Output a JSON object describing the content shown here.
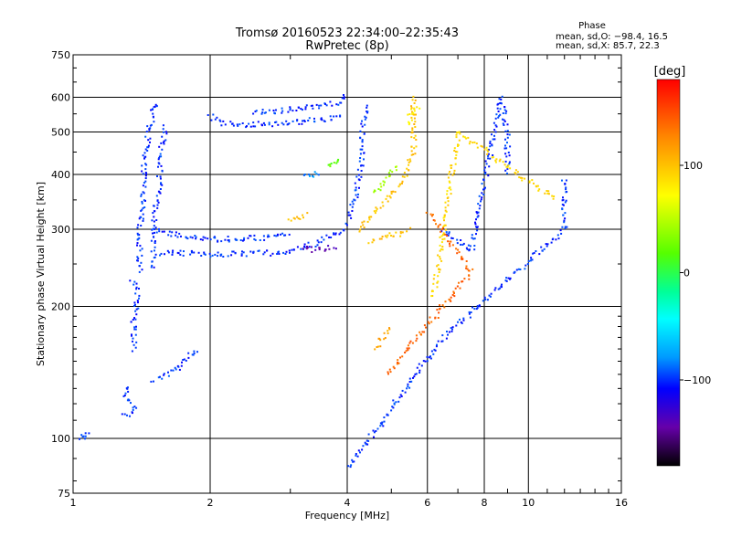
{
  "chart_data": {
    "type": "scatter",
    "title": "Tromsø 20160523 22:34:00–22:35:43",
    "subtitle": "RwPretec (8p)",
    "xlabel": "Frequency [MHz]",
    "ylabel": "Stationary phase Virtual Height [km]",
    "x_scale": "log",
    "y_scale": "log",
    "xlim": [
      1,
      16
    ],
    "ylim": [
      75,
      750
    ],
    "x_ticks": [
      1,
      2,
      4,
      6,
      8,
      10,
      16
    ],
    "x_tick_labels": [
      "1",
      "2",
      "4",
      "6",
      "8",
      "10",
      "16"
    ],
    "y_ticks": [
      75,
      100,
      200,
      300,
      400,
      500,
      600,
      750
    ],
    "y_tick_labels": [
      "75",
      "100",
      "200",
      "300",
      "400",
      "500",
      "600",
      "750"
    ],
    "grid": true,
    "stats": {
      "heading": "Phase",
      "line_o": "mean, sd,O: −98.4, 16.5",
      "line_x": "mean, sd,X:  85.7, 22.3"
    },
    "colorbar": {
      "label": "[deg]",
      "range": [
        -180,
        180
      ],
      "ticks": [
        100,
        0,
        -100
      ],
      "tick_labels": [
        "100",
        "0",
        "−100"
      ]
    },
    "traces": [
      {
        "phase": -100,
        "points": [
          [
            1.3,
            115
          ],
          [
            1.33,
            113
          ],
          [
            1.36,
            118
          ],
          [
            1.3,
            125
          ],
          [
            1.33,
            132
          ]
        ]
      },
      {
        "phase": -100,
        "points": [
          [
            1.36,
            160
          ],
          [
            1.36,
            185
          ],
          [
            1.38,
            200
          ],
          [
            1.38,
            220
          ],
          [
            1.36,
            230
          ],
          [
            1.33,
            230
          ]
        ]
      },
      {
        "phase": -100,
        "points": [
          [
            1.4,
            240
          ],
          [
            1.4,
            270
          ],
          [
            1.4,
            300
          ],
          [
            1.42,
            340
          ],
          [
            1.43,
            380
          ],
          [
            1.43,
            430
          ],
          [
            1.45,
            470
          ],
          [
            1.48,
            520
          ],
          [
            1.5,
            560
          ],
          [
            1.55,
            590
          ]
        ]
      },
      {
        "phase": -100,
        "points": [
          [
            1.5,
            245
          ],
          [
            1.5,
            300
          ],
          [
            1.52,
            340
          ],
          [
            1.55,
            380
          ],
          [
            1.55,
            440
          ],
          [
            1.58,
            480
          ],
          [
            1.6,
            520
          ]
        ]
      },
      {
        "phase": -100,
        "points": [
          [
            1.55,
            265
          ],
          [
            1.7,
            265
          ],
          [
            1.9,
            263
          ],
          [
            2.1,
            263
          ],
          [
            2.4,
            264
          ],
          [
            2.8,
            265
          ],
          [
            3.0,
            268
          ],
          [
            3.2,
            272
          ],
          [
            3.4,
            278
          ],
          [
            3.6,
            285
          ],
          [
            3.8,
            295
          ],
          [
            4.0,
            300
          ]
        ]
      },
      {
        "phase": -100,
        "points": [
          [
            1.5,
            300
          ],
          [
            1.6,
            293
          ],
          [
            1.8,
            288
          ],
          [
            2.0,
            285
          ],
          [
            2.3,
            285
          ],
          [
            2.6,
            287
          ],
          [
            2.8,
            290
          ],
          [
            3.0,
            292
          ]
        ]
      },
      {
        "phase": -100,
        "points": [
          [
            2.0,
            545
          ],
          [
            2.1,
            525
          ],
          [
            2.4,
            520
          ],
          [
            2.7,
            520
          ],
          [
            3.0,
            525
          ],
          [
            3.3,
            530
          ],
          [
            3.6,
            535
          ],
          [
            3.9,
            540
          ]
        ]
      },
      {
        "phase": -100,
        "points": [
          [
            2.5,
            555
          ],
          [
            2.9,
            560
          ],
          [
            3.2,
            565
          ],
          [
            3.6,
            575
          ],
          [
            3.9,
            590
          ],
          [
            4.0,
            610
          ]
        ]
      },
      {
        "phase": -100,
        "points": [
          [
            4.0,
            310
          ],
          [
            4.1,
            340
          ],
          [
            4.2,
            370
          ],
          [
            4.3,
            420
          ],
          [
            4.3,
            480
          ],
          [
            4.35,
            540
          ],
          [
            4.4,
            580
          ]
        ]
      },
      {
        "phase": -100,
        "points": [
          [
            1.05,
            100
          ],
          [
            1.06,
            101
          ],
          [
            1.07,
            102
          ],
          [
            1.04,
            99
          ]
        ]
      },
      {
        "phase": -100,
        "points": [
          [
            1.5,
            135
          ],
          [
            1.6,
            140
          ],
          [
            1.7,
            145
          ],
          [
            1.8,
            155
          ],
          [
            1.9,
            160
          ]
        ]
      },
      {
        "phase": -80,
        "points": [
          [
            3.2,
            395
          ],
          [
            3.3,
            398
          ],
          [
            3.4,
            400
          ],
          [
            3.5,
            404
          ]
        ]
      },
      {
        "phase": 100,
        "points": [
          [
            3.0,
            312
          ],
          [
            3.1,
            318
          ],
          [
            3.2,
            322
          ],
          [
            3.3,
            325
          ]
        ]
      },
      {
        "phase": 20,
        "points": [
          [
            3.6,
            420
          ],
          [
            3.7,
            425
          ],
          [
            3.8,
            430
          ],
          [
            3.9,
            435
          ]
        ]
      },
      {
        "phase": 100,
        "points": [
          [
            4.2,
            300
          ],
          [
            4.4,
            310
          ],
          [
            4.6,
            330
          ],
          [
            4.8,
            345
          ],
          [
            5.0,
            360
          ],
          [
            5.2,
            380
          ],
          [
            5.4,
            400
          ],
          [
            5.5,
            430
          ],
          [
            5.6,
            460
          ],
          [
            5.6,
            510
          ],
          [
            5.6,
            560
          ],
          [
            5.6,
            610
          ]
        ]
      },
      {
        "phase": 100,
        "points": [
          [
            4.5,
            280
          ],
          [
            4.7,
            285
          ],
          [
            5.0,
            290
          ],
          [
            5.3,
            295
          ],
          [
            5.5,
            300
          ]
        ]
      },
      {
        "phase": 40,
        "points": [
          [
            4.6,
            360
          ],
          [
            4.8,
            380
          ],
          [
            5.0,
            400
          ],
          [
            5.2,
            420
          ]
        ]
      },
      {
        "phase": 80,
        "points": [
          [
            5.4,
            520
          ],
          [
            5.5,
            540
          ],
          [
            5.6,
            560
          ],
          [
            5.8,
            580
          ]
        ]
      },
      {
        "phase": -140,
        "points": [
          [
            3.2,
            270
          ],
          [
            3.5,
            270
          ],
          [
            3.8,
            275
          ]
        ]
      },
      {
        "phase": 110,
        "points": [
          [
            4.6,
            160
          ],
          [
            4.8,
            170
          ],
          [
            5.0,
            180
          ]
        ]
      },
      {
        "phase": -100,
        "points": [
          [
            6.5,
            300
          ],
          [
            7.0,
            280
          ],
          [
            7.5,
            270
          ],
          [
            8.7,
            600
          ],
          [
            9.0,
            490
          ],
          [
            9.0,
            400
          ]
        ]
      },
      {
        "phase": 140,
        "points": [
          [
            4.9,
            140
          ],
          [
            7.5,
            240
          ],
          [
            6.0,
            330
          ]
        ]
      },
      {
        "phase": 90,
        "points": [
          [
            6.2,
            210
          ],
          [
            7.0,
            500
          ],
          [
            11.5,
            350
          ]
        ]
      },
      {
        "phase": -100,
        "points": [
          [
            12,
            390
          ],
          [
            12,
            300
          ],
          [
            6.5,
            170
          ],
          [
            4.0,
            85
          ]
        ]
      }
    ]
  }
}
